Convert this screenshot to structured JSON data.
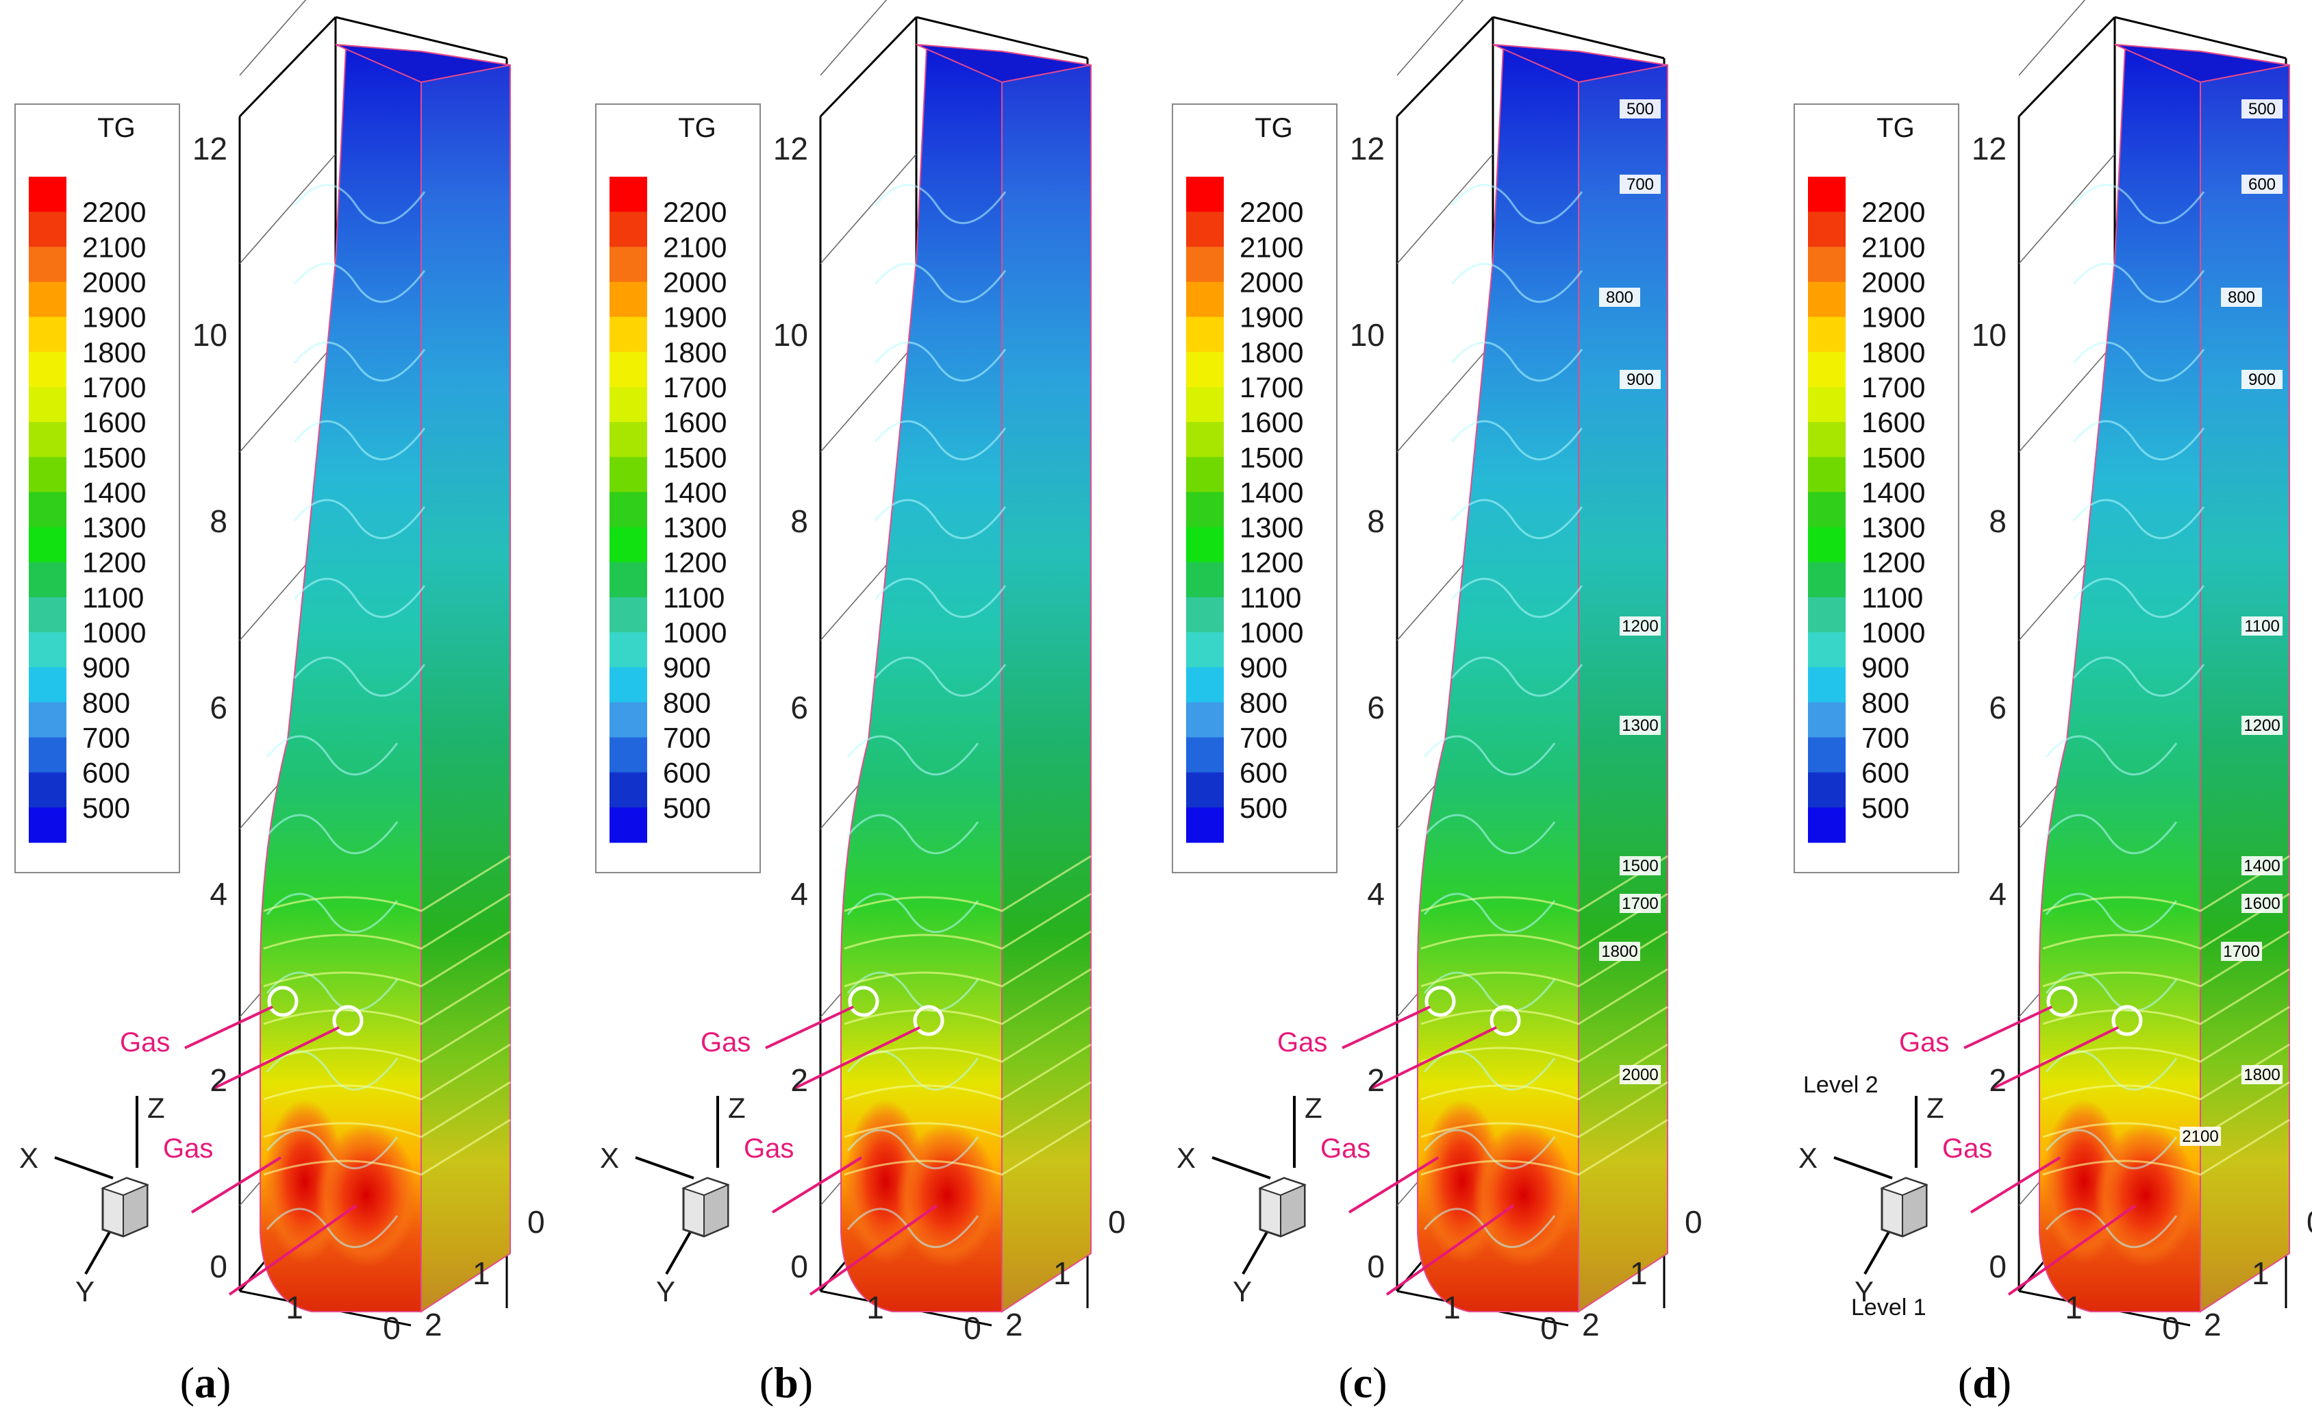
{
  "legend": {
    "title": "TG",
    "levels": [
      2200,
      2100,
      2000,
      1900,
      1800,
      1700,
      1600,
      1500,
      1400,
      1300,
      1200,
      1100,
      1000,
      900,
      800,
      700,
      600,
      500
    ],
    "colors": [
      "#ff0000",
      "#f23a0a",
      "#f77213",
      "#ff9f00",
      "#ffd400",
      "#f2f200",
      "#d8f200",
      "#a8e600",
      "#70d900",
      "#2fcf1a",
      "#11e011",
      "#20c650",
      "#33c998",
      "#38d6c8",
      "#22c4ec",
      "#3d9be8",
      "#2266dd",
      "#1133cc",
      "#0a0aeb"
    ]
  },
  "axes": {
    "z_ticks": [
      "0",
      "2",
      "4",
      "6",
      "8",
      "10",
      "12"
    ],
    "x_ticks": [
      "0",
      "1"
    ],
    "y_ticks": [
      "0",
      "1",
      "2"
    ],
    "triad": [
      "X",
      "Y",
      "Z"
    ]
  },
  "panels": [
    {
      "caption_letter": "a",
      "gas_labels": [
        "Gas",
        "Gas"
      ],
      "isolines": [],
      "level_labels": []
    },
    {
      "caption_letter": "b",
      "gas_labels": [
        "Gas",
        "Gas"
      ],
      "isolines": [],
      "level_labels": []
    },
    {
      "caption_letter": "c",
      "gas_labels": [
        "Gas",
        "Gas"
      ],
      "isolines": [
        "500",
        "700",
        "800",
        "900",
        "1200",
        "1300",
        "1500",
        "1700",
        "1800",
        "2000"
      ],
      "level_labels": []
    },
    {
      "caption_letter": "d",
      "gas_labels": [
        "Gas",
        "Gas"
      ],
      "isolines": [
        "500",
        "600",
        "800",
        "900",
        "1100",
        "1200",
        "1400",
        "1600",
        "1700",
        "1800",
        "2100"
      ],
      "level_labels": [
        "Level 2",
        "Level 1"
      ]
    }
  ]
}
